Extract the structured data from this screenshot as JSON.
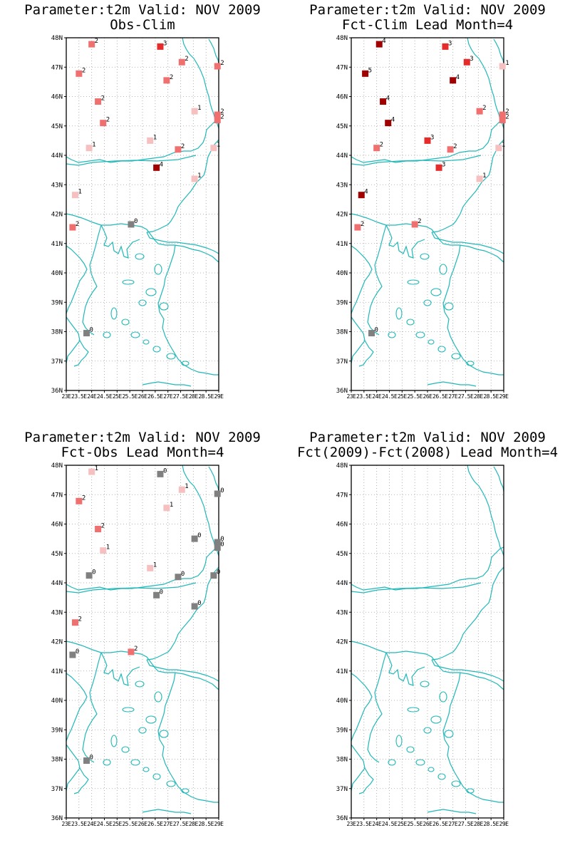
{
  "axes": {
    "lat_labels": [
      "48N",
      "47N",
      "46N",
      "45N",
      "44N",
      "43N",
      "42N",
      "41N",
      "40N",
      "39N",
      "38N",
      "37N",
      "36N"
    ],
    "lon_labels": [
      "23E",
      "23.5E",
      "24E",
      "24.5E",
      "25E",
      "25.5E",
      "26E",
      "26.5E",
      "27E",
      "27.5E",
      "28E",
      "28.5E",
      "29E"
    ],
    "lon_range": [
      23,
      29
    ],
    "lat_range": [
      36,
      48
    ],
    "grid": true
  },
  "colors": {
    "coast": "#20b8b8",
    "grid": "#a0a0a0",
    "scale": {
      "0": "#808080",
      "1": "#f7c0c0",
      "2": "#f07070",
      "3": "#e62b2b",
      "4": "#a00000",
      "5": "#a00000"
    }
  },
  "panels": [
    {
      "title1": "Parameter:t2m Valid: NOV 2009",
      "title2": "Obs-Clim",
      "stations": [
        {
          "lon": 24.0,
          "lat": 47.78,
          "v": 2
        },
        {
          "lon": 26.7,
          "lat": 47.7,
          "v": 3
        },
        {
          "lon": 27.55,
          "lat": 47.17,
          "v": 2
        },
        {
          "lon": 28.95,
          "lat": 47.03,
          "v": 2
        },
        {
          "lon": 23.5,
          "lat": 46.78,
          "v": 2
        },
        {
          "lon": 26.95,
          "lat": 46.55,
          "v": 2
        },
        {
          "lon": 24.25,
          "lat": 45.83,
          "v": 2
        },
        {
          "lon": 28.05,
          "lat": 45.5,
          "v": 1
        },
        {
          "lon": 28.95,
          "lat": 45.38,
          "v": 2
        },
        {
          "lon": 28.95,
          "lat": 45.2,
          "v": 2
        },
        {
          "lon": 24.45,
          "lat": 45.1,
          "v": 2
        },
        {
          "lon": 26.3,
          "lat": 44.5,
          "v": 1
        },
        {
          "lon": 23.9,
          "lat": 44.25,
          "v": 1
        },
        {
          "lon": 27.4,
          "lat": 44.2,
          "v": 2
        },
        {
          "lon": 28.8,
          "lat": 44.25,
          "v": 1
        },
        {
          "lon": 26.55,
          "lat": 43.58,
          "v": 4
        },
        {
          "lon": 28.05,
          "lat": 43.2,
          "v": 1
        },
        {
          "lon": 23.35,
          "lat": 42.65,
          "v": 1
        },
        {
          "lon": 25.55,
          "lat": 41.65,
          "v": 0
        },
        {
          "lon": 23.25,
          "lat": 41.55,
          "v": 2
        },
        {
          "lon": 23.8,
          "lat": 37.95,
          "v": 0
        }
      ]
    },
    {
      "title1": "Parameter:t2m Valid: NOV 2009",
      "title2": "Fct-Clim Lead Month=4",
      "stations": [
        {
          "lon": 24.1,
          "lat": 47.78,
          "v": 4
        },
        {
          "lon": 26.7,
          "lat": 47.7,
          "v": 3
        },
        {
          "lon": 27.55,
          "lat": 47.17,
          "v": 3
        },
        {
          "lon": 28.95,
          "lat": 47.03,
          "v": 1
        },
        {
          "lon": 23.55,
          "lat": 46.78,
          "v": 5
        },
        {
          "lon": 27.0,
          "lat": 46.55,
          "v": 4
        },
        {
          "lon": 24.25,
          "lat": 45.83,
          "v": 4
        },
        {
          "lon": 28.05,
          "lat": 45.5,
          "v": 2
        },
        {
          "lon": 28.95,
          "lat": 45.38,
          "v": 2
        },
        {
          "lon": 28.95,
          "lat": 45.2,
          "v": 2
        },
        {
          "lon": 24.45,
          "lat": 45.1,
          "v": 4
        },
        {
          "lon": 26.0,
          "lat": 44.5,
          "v": 3
        },
        {
          "lon": 24.0,
          "lat": 44.25,
          "v": 2
        },
        {
          "lon": 26.9,
          "lat": 44.2,
          "v": 2
        },
        {
          "lon": 28.8,
          "lat": 44.25,
          "v": 1
        },
        {
          "lon": 26.45,
          "lat": 43.58,
          "v": 3
        },
        {
          "lon": 28.05,
          "lat": 43.2,
          "v": 1
        },
        {
          "lon": 23.4,
          "lat": 42.65,
          "v": 4
        },
        {
          "lon": 25.5,
          "lat": 41.65,
          "v": 2
        },
        {
          "lon": 23.25,
          "lat": 41.55,
          "v": 2
        },
        {
          "lon": 23.8,
          "lat": 37.95,
          "v": 0
        }
      ]
    },
    {
      "title1": "Parameter:t2m Valid: NOV 2009",
      "title2": "Fct-Obs Lead Month=4",
      "stations": [
        {
          "lon": 24.0,
          "lat": 47.78,
          "v": 1
        },
        {
          "lon": 26.7,
          "lat": 47.7,
          "v": 0
        },
        {
          "lon": 27.55,
          "lat": 47.17,
          "v": 1
        },
        {
          "lon": 28.95,
          "lat": 47.03,
          "v": 0
        },
        {
          "lon": 23.5,
          "lat": 46.78,
          "v": 2
        },
        {
          "lon": 26.95,
          "lat": 46.55,
          "v": 1
        },
        {
          "lon": 24.25,
          "lat": 45.83,
          "v": 2
        },
        {
          "lon": 28.05,
          "lat": 45.5,
          "v": 0
        },
        {
          "lon": 28.95,
          "lat": 45.38,
          "v": 0
        },
        {
          "lon": 28.95,
          "lat": 45.2,
          "v": 0
        },
        {
          "lon": 24.45,
          "lat": 45.1,
          "v": 1
        },
        {
          "lon": 26.3,
          "lat": 44.5,
          "v": 1
        },
        {
          "lon": 23.9,
          "lat": 44.25,
          "v": 0
        },
        {
          "lon": 27.4,
          "lat": 44.2,
          "v": 0
        },
        {
          "lon": 28.8,
          "lat": 44.25,
          "v": 0
        },
        {
          "lon": 26.55,
          "lat": 43.58,
          "v": 0
        },
        {
          "lon": 28.05,
          "lat": 43.2,
          "v": 0
        },
        {
          "lon": 23.35,
          "lat": 42.65,
          "v": 2
        },
        {
          "lon": 25.55,
          "lat": 41.65,
          "v": 2
        },
        {
          "lon": 23.25,
          "lat": 41.55,
          "v": 0
        },
        {
          "lon": 23.8,
          "lat": 37.95,
          "v": 0
        }
      ]
    },
    {
      "title1": "Parameter:t2m Valid: NOV 2009",
      "title2": "Fct(2009)-Fct(2008) Lead Month=4",
      "stations": []
    }
  ]
}
